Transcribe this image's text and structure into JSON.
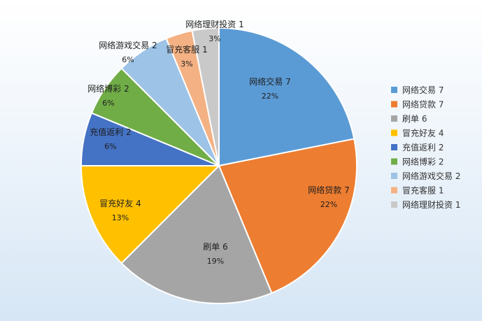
{
  "chart_data": {
    "type": "pie",
    "title": "",
    "legend_position": "right",
    "slices": [
      {
        "label": "网络交易 7",
        "legend": "网络交易 7",
        "value": 7,
        "pct_text": "22%",
        "color": "#5b9bd5"
      },
      {
        "label": "网络贷款 7",
        "legend": "网络贷款 7",
        "value": 7,
        "pct_text": "22%",
        "color": "#ed7d31"
      },
      {
        "label": "刷单 6",
        "legend": "刷单 6",
        "value": 6,
        "pct_text": "19%",
        "color": "#a5a5a5"
      },
      {
        "label": "冒充好友 4",
        "legend": "冒充好友 4",
        "value": 4,
        "pct_text": "13%",
        "color": "#ffc000"
      },
      {
        "label": "充值返利 2",
        "legend": "充值返利 2",
        "value": 2,
        "pct_text": "6%",
        "color": "#4472c4"
      },
      {
        "label": "网络博彩 2",
        "legend": "网络博彩 2",
        "value": 2,
        "pct_text": "6%",
        "color": "#70ad47"
      },
      {
        "label": "网络游戏交易 2",
        "legend": "网络游戏交易 2",
        "value": 2,
        "pct_text": "6%",
        "color": "#9dc3e6"
      },
      {
        "label": "冒充客服 1",
        "legend": "冒充客服 1",
        "value": 1,
        "pct_text": "3%",
        "color": "#f4b183"
      },
      {
        "label": "网络理财投资 1",
        "legend": "网络理财投资 1",
        "value": 1,
        "pct_text": "3%",
        "color": "#c9c9c9"
      }
    ]
  }
}
